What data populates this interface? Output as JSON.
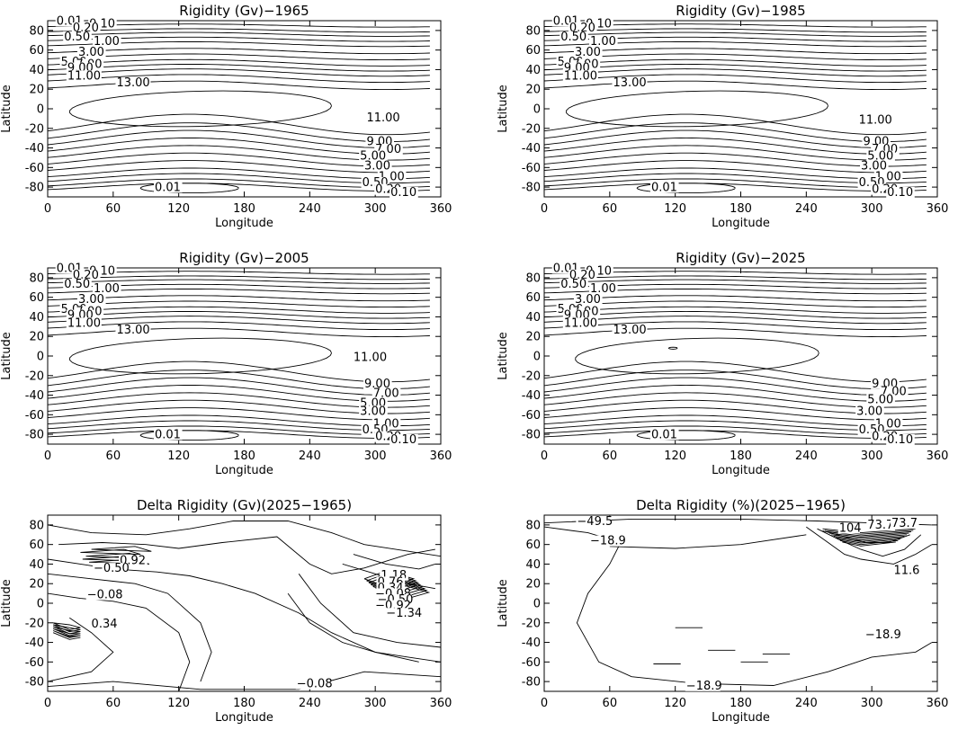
{
  "chart_data": [
    {
      "type": "contour",
      "title": "Rigidity (Gv)−1965",
      "xlabel": "Longitude",
      "ylabel": "Latitude",
      "xlim": [
        0,
        360
      ],
      "ylim": [
        -90,
        90
      ],
      "xticks": [
        0,
        60,
        120,
        180,
        240,
        300,
        360
      ],
      "yticks": [
        -80,
        -60,
        -40,
        -20,
        0,
        20,
        40,
        60,
        80
      ],
      "labels": [
        {
          "text": "0.01",
          "lon": 8,
          "lat": 86
        },
        {
          "text": "0.10",
          "lon": 38,
          "lat": 83
        },
        {
          "text": "0.20",
          "lon": 23,
          "lat": 79
        },
        {
          "text": "0.50",
          "lon": 15,
          "lat": 70
        },
        {
          "text": "1.00",
          "lon": 42,
          "lat": 65
        },
        {
          "text": "3.00",
          "lon": 28,
          "lat": 54
        },
        {
          "text": "5.00",
          "lon": 12,
          "lat": 44
        },
        {
          "text": "7.00",
          "lon": 26,
          "lat": 42
        },
        {
          "text": "9.00",
          "lon": 18,
          "lat": 38
        },
        {
          "text": "11.00",
          "lon": 18,
          "lat": 30
        },
        {
          "text": "13.00",
          "lon": 63,
          "lat": 23
        },
        {
          "text": "11.00",
          "lon": 292,
          "lat": -13
        },
        {
          "text": "9.00",
          "lon": 292,
          "lat": -37
        },
        {
          "text": "7.00",
          "lon": 300,
          "lat": -45
        },
        {
          "text": "5.00",
          "lon": 286,
          "lat": -52
        },
        {
          "text": "3.00",
          "lon": 290,
          "lat": -62
        },
        {
          "text": "1.00",
          "lon": 303,
          "lat": -73
        },
        {
          "text": "0.50",
          "lon": 288,
          "lat": -79
        },
        {
          "text": "0.20",
          "lon": 300,
          "lat": -86
        },
        {
          "text": "0.10",
          "lon": 314,
          "lat": -89
        },
        {
          "text": "0.01",
          "lon": 98,
          "lat": -84
        }
      ]
    },
    {
      "type": "contour",
      "title": "Rigidity (Gv)−1985",
      "xlabel": "Longitude",
      "ylabel": "Latitude",
      "xlim": [
        0,
        360
      ],
      "ylim": [
        -90,
        90
      ],
      "xticks": [
        0,
        60,
        120,
        180,
        240,
        300,
        360
      ],
      "yticks": [
        -80,
        -60,
        -40,
        -20,
        0,
        20,
        40,
        60,
        80
      ],
      "labels": [
        {
          "text": "0.01",
          "lon": 8,
          "lat": 86
        },
        {
          "text": "0.10",
          "lon": 38,
          "lat": 83
        },
        {
          "text": "0.20",
          "lon": 23,
          "lat": 79
        },
        {
          "text": "0.50",
          "lon": 15,
          "lat": 70
        },
        {
          "text": "1.00",
          "lon": 42,
          "lat": 65
        },
        {
          "text": "3.00",
          "lon": 28,
          "lat": 54
        },
        {
          "text": "5.00",
          "lon": 12,
          "lat": 44
        },
        {
          "text": "7.00",
          "lon": 26,
          "lat": 42
        },
        {
          "text": "9.00",
          "lon": 18,
          "lat": 38
        },
        {
          "text": "11.00",
          "lon": 18,
          "lat": 30
        },
        {
          "text": "13.00",
          "lon": 63,
          "lat": 23
        },
        {
          "text": "11.00",
          "lon": 288,
          "lat": -15
        },
        {
          "text": "9.00",
          "lon": 292,
          "lat": -37
        },
        {
          "text": "7.00",
          "lon": 300,
          "lat": -45
        },
        {
          "text": "5.00",
          "lon": 296,
          "lat": -52
        },
        {
          "text": "3.00",
          "lon": 290,
          "lat": -62
        },
        {
          "text": "1.00",
          "lon": 303,
          "lat": -73
        },
        {
          "text": "0.50",
          "lon": 288,
          "lat": -79
        },
        {
          "text": "0.20",
          "lon": 300,
          "lat": -86
        },
        {
          "text": "0.10",
          "lon": 314,
          "lat": -89
        },
        {
          "text": "0.01",
          "lon": 98,
          "lat": -84
        }
      ]
    },
    {
      "type": "contour",
      "title": "Rigidity (Gv)−2005",
      "xlabel": "Longitude",
      "ylabel": "Latitude",
      "xlim": [
        0,
        360
      ],
      "ylim": [
        -90,
        90
      ],
      "xticks": [
        0,
        60,
        120,
        180,
        240,
        300,
        360
      ],
      "yticks": [
        -80,
        -60,
        -40,
        -20,
        0,
        20,
        40,
        60,
        80
      ],
      "labels": [
        {
          "text": "0.01",
          "lon": 8,
          "lat": 86
        },
        {
          "text": "0.10",
          "lon": 38,
          "lat": 83
        },
        {
          "text": "0.20",
          "lon": 23,
          "lat": 79
        },
        {
          "text": "0.50",
          "lon": 15,
          "lat": 70
        },
        {
          "text": "1.00",
          "lon": 42,
          "lat": 65
        },
        {
          "text": "3.00",
          "lon": 28,
          "lat": 54
        },
        {
          "text": "5.00",
          "lon": 12,
          "lat": 44
        },
        {
          "text": "7.00",
          "lon": 26,
          "lat": 42
        },
        {
          "text": "9.00",
          "lon": 18,
          "lat": 38
        },
        {
          "text": "11.00",
          "lon": 18,
          "lat": 30
        },
        {
          "text": "13.00",
          "lon": 63,
          "lat": 23
        },
        {
          "text": "11.00",
          "lon": 280,
          "lat": -5
        },
        {
          "text": "9.00",
          "lon": 290,
          "lat": -32
        },
        {
          "text": "7.00",
          "lon": 298,
          "lat": -42
        },
        {
          "text": "5.00",
          "lon": 286,
          "lat": -52
        },
        {
          "text": "3.00",
          "lon": 286,
          "lat": -60
        },
        {
          "text": "1.00",
          "lon": 298,
          "lat": -73
        },
        {
          "text": "0.50",
          "lon": 288,
          "lat": -79
        },
        {
          "text": "0.20",
          "lon": 300,
          "lat": -86
        },
        {
          "text": "0.10",
          "lon": 314,
          "lat": -89
        },
        {
          "text": "0.01",
          "lon": 98,
          "lat": -84
        }
      ]
    },
    {
      "type": "contour",
      "title": "Rigidity (Gv)−2025",
      "xlabel": "Longitude",
      "ylabel": "Latitude",
      "xlim": [
        0,
        360
      ],
      "ylim": [
        -90,
        90
      ],
      "xticks": [
        0,
        60,
        120,
        180,
        240,
        300,
        360
      ],
      "yticks": [
        -80,
        -60,
        -40,
        -20,
        0,
        20,
        40,
        60,
        80
      ],
      "labels": [
        {
          "text": "0.01",
          "lon": 8,
          "lat": 86
        },
        {
          "text": "0.10",
          "lon": 38,
          "lat": 83
        },
        {
          "text": "0.20",
          "lon": 23,
          "lat": 79
        },
        {
          "text": "0.50",
          "lon": 15,
          "lat": 70
        },
        {
          "text": "1.00",
          "lon": 42,
          "lat": 65
        },
        {
          "text": "3.00",
          "lon": 28,
          "lat": 54
        },
        {
          "text": "5.00",
          "lon": 12,
          "lat": 44
        },
        {
          "text": "7.00",
          "lon": 26,
          "lat": 42
        },
        {
          "text": "9.00",
          "lon": 18,
          "lat": 38
        },
        {
          "text": "11.00",
          "lon": 18,
          "lat": 30
        },
        {
          "text": "13.00",
          "lon": 63,
          "lat": 23
        },
        {
          "text": "9.00",
          "lon": 300,
          "lat": -32
        },
        {
          "text": "7.00",
          "lon": 308,
          "lat": -40
        },
        {
          "text": "5.00",
          "lon": 296,
          "lat": -48
        },
        {
          "text": "3.00",
          "lon": 286,
          "lat": -60
        },
        {
          "text": "1.00",
          "lon": 303,
          "lat": -73
        },
        {
          "text": "0.50",
          "lon": 288,
          "lat": -79
        },
        {
          "text": "0.20",
          "lon": 300,
          "lat": -86
        },
        {
          "text": "0.10",
          "lon": 314,
          "lat": -89
        },
        {
          "text": "0.01",
          "lon": 98,
          "lat": -84
        }
      ]
    },
    {
      "type": "contour",
      "title": "Delta Rigidity (Gv)(2025−1965)",
      "xlabel": "Longitude",
      "ylabel": "Latitude",
      "xlim": [
        0,
        360
      ],
      "ylim": [
        -90,
        90
      ],
      "xticks": [
        0,
        60,
        120,
        180,
        240,
        300,
        360
      ],
      "yticks": [
        -80,
        -60,
        -40,
        -20,
        0,
        20,
        40,
        60,
        80
      ],
      "labels": [
        {
          "text": "0.92",
          "lon": 66,
          "lat": 40
        },
        {
          "text": "−0.50",
          "lon": 42,
          "lat": 32
        },
        {
          "text": "−0.08",
          "lon": 36,
          "lat": 5
        },
        {
          "text": "0.34",
          "lon": 40,
          "lat": -25
        },
        {
          "text": "−0.08",
          "lon": 228,
          "lat": -86
        },
        {
          "text": "1.18",
          "lon": 305,
          "lat": 25
        },
        {
          "text": "0.76",
          "lon": 302,
          "lat": 18
        },
        {
          "text": "0.34",
          "lon": 302,
          "lat": 12
        },
        {
          "text": "−0.08",
          "lon": 300,
          "lat": 6
        },
        {
          "text": "−0.50",
          "lon": 302,
          "lat": 0
        },
        {
          "text": "−0.92",
          "lon": 300,
          "lat": -6
        },
        {
          "text": "−1.34",
          "lon": 310,
          "lat": -14
        }
      ]
    },
    {
      "type": "contour",
      "title": "Delta Rigidity (%)(2025−1965)",
      "xlabel": "Longitude",
      "ylabel": "Latitude",
      "xlim": [
        0,
        360
      ],
      "ylim": [
        -90,
        90
      ],
      "xticks": [
        0,
        60,
        120,
        180,
        240,
        300,
        360
      ],
      "yticks": [
        -80,
        -60,
        -40,
        -20,
        0,
        20,
        40,
        60,
        80
      ],
      "labels": [
        {
          "text": "−49.5",
          "lon": 30,
          "lat": 80
        },
        {
          "text": "−18.9",
          "lon": 42,
          "lat": 60
        },
        {
          "text": "11.6",
          "lon": 320,
          "lat": 30
        },
        {
          "text": "−18.9",
          "lon": 294,
          "lat": -36
        },
        {
          "text": "−18.9",
          "lon": 130,
          "lat": -88
        },
        {
          "text": "73.7",
          "lon": 296,
          "lat": 76
        },
        {
          "text": "104",
          "lon": 270,
          "lat": 73
        },
        {
          "text": "73.7",
          "lon": 318,
          "lat": 78
        }
      ]
    }
  ]
}
